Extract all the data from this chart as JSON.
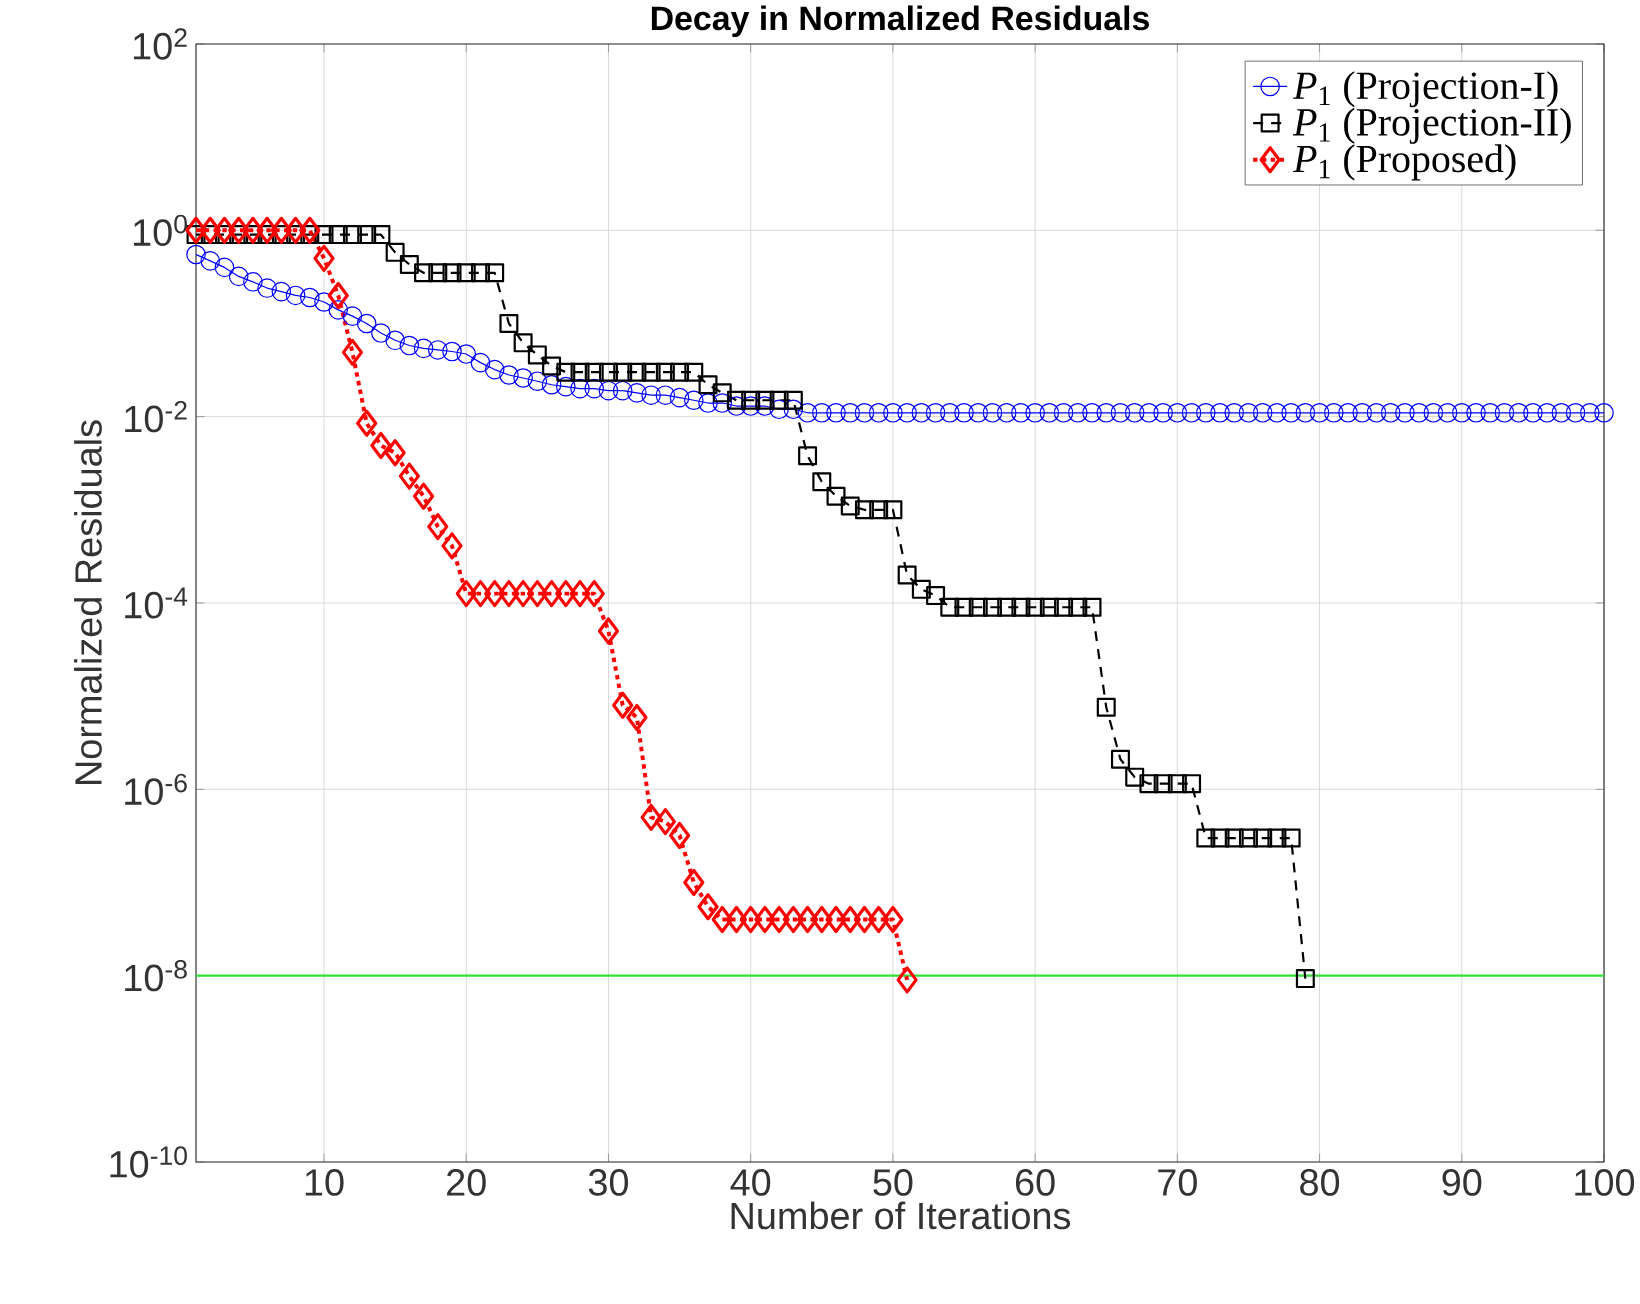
{
  "chart_data": {
    "type": "line",
    "title": "Decay in Normalized Residuals",
    "xlabel": "Number of Iterations",
    "ylabel": "Normalized Residuals",
    "log": "y",
    "grid": true,
    "legend": "top right",
    "xlim": [
      1,
      100
    ],
    "xticks": [
      10,
      20,
      30,
      40,
      50,
      60,
      70,
      80,
      90,
      100
    ],
    "ylim": [
      1e-10,
      100
    ],
    "yticks": [
      {
        "value": 1e-10,
        "label": "10$^{-10}$"
      },
      {
        "value": 1e-08,
        "label": "10$^{-8}$"
      },
      {
        "value": 1e-06,
        "label": "10$^{-6}$"
      },
      {
        "value": 0.0001,
        "label": "10$^{-4}$"
      },
      {
        "value": 0.01,
        "label": "10$^{-2}$"
      },
      {
        "value": 1,
        "label": "10$^{0}$"
      },
      {
        "value": 100,
        "label": "10$^{2}$"
      }
    ],
    "x": [
      1,
      2,
      3,
      4,
      5,
      6,
      7,
      8,
      9,
      10,
      11,
      12,
      13,
      14,
      15,
      16,
      17,
      18,
      19,
      20,
      21,
      22,
      23,
      24,
      25,
      26,
      27,
      28,
      29,
      30,
      31,
      32,
      33,
      34,
      35,
      36,
      37,
      38,
      39,
      40,
      41,
      42,
      43,
      44,
      45,
      46,
      47,
      48,
      49,
      50,
      51,
      52,
      53,
      54,
      55,
      56,
      57,
      58,
      59,
      60,
      61,
      62,
      63,
      64,
      65,
      66,
      67,
      68,
      69,
      70,
      71,
      72,
      73,
      74,
      75,
      76,
      77,
      78,
      79,
      80,
      81,
      82,
      83,
      84,
      85,
      86,
      87,
      88,
      89,
      90,
      91,
      92,
      93,
      94,
      95,
      96,
      97,
      98,
      99,
      100
    ],
    "series": [
      {
        "name": "*P*$_{1}$ (Projection-I)",
        "color": "#0000ff",
        "marker": "circle",
        "line_style": "solid",
        "values": [
          0.55,
          0.47,
          0.4,
          0.32,
          0.28,
          0.24,
          0.22,
          0.2,
          0.19,
          0.17,
          0.14,
          0.12,
          0.1,
          0.079,
          0.066,
          0.058,
          0.054,
          0.052,
          0.05,
          0.047,
          0.038,
          0.032,
          0.028,
          0.026,
          0.024,
          0.022,
          0.021,
          0.02,
          0.02,
          0.019,
          0.019,
          0.018,
          0.017,
          0.017,
          0.016,
          0.015,
          0.014,
          0.014,
          0.013,
          0.013,
          0.013,
          0.012,
          0.012,
          0.011,
          0.011,
          0.011,
          0.011,
          0.011,
          0.011,
          0.011,
          0.011,
          0.011,
          0.011,
          0.011,
          0.011,
          0.011,
          0.011,
          0.011,
          0.011,
          0.011,
          0.011,
          0.011,
          0.011,
          0.011,
          0.011,
          0.011,
          0.011,
          0.011,
          0.011,
          0.011,
          0.011,
          0.011,
          0.011,
          0.011,
          0.011,
          0.011,
          0.011,
          0.011,
          0.011,
          0.011,
          0.011,
          0.011,
          0.011,
          0.011,
          0.011,
          0.011,
          0.011,
          0.011,
          0.011,
          0.011,
          0.011,
          0.011,
          0.011,
          0.011,
          0.011,
          0.011,
          0.011,
          0.011,
          0.011,
          0.011
        ]
      },
      {
        "name": "*P*$_{1}$ (Projection-II)",
        "color": "#000000",
        "marker": "square",
        "line_style": "dashed",
        "values": [
          0.9,
          0.9,
          0.9,
          0.9,
          0.9,
          0.9,
          0.9,
          0.9,
          0.9,
          0.9,
          0.9,
          0.9,
          0.9,
          0.9,
          0.58,
          0.43,
          0.35,
          0.35,
          0.35,
          0.35,
          0.35,
          0.35,
          0.1,
          0.062,
          0.046,
          0.035,
          0.03,
          0.03,
          0.03,
          0.03,
          0.03,
          0.03,
          0.03,
          0.03,
          0.03,
          0.03,
          0.022,
          0.018,
          0.015,
          0.015,
          0.015,
          0.015,
          0.015,
          0.0038,
          0.002,
          0.0014,
          0.0011,
          0.001,
          0.001,
          0.001,
          0.0002,
          0.00014,
          0.00012,
          9e-05,
          9e-05,
          9e-05,
          9e-05,
          9e-05,
          9e-05,
          9e-05,
          9e-05,
          9e-05,
          9e-05,
          9e-05,
          7.6e-06,
          2.1e-06,
          1.35e-06,
          1.15e-06,
          1.15e-06,
          1.15e-06,
          1.15e-06,
          3e-07,
          3e-07,
          3e-07,
          3e-07,
          3e-07,
          3e-07,
          3e-07,
          9.3e-09,
          null,
          null,
          null,
          null,
          null,
          null,
          null,
          null,
          null,
          null,
          null,
          null,
          null,
          null,
          null,
          null,
          null,
          null,
          null,
          null,
          null
        ]
      },
      {
        "name": "*P*$_{1}$ (Proposed)",
        "color": "#ff0000",
        "marker": "diamond",
        "line_style": "dotted",
        "values": [
          1.0,
          1.0,
          1.0,
          1.0,
          1.0,
          1.0,
          1.0,
          1.0,
          1.0,
          0.5,
          0.2,
          0.049,
          0.0085,
          0.0049,
          0.0041,
          0.0023,
          0.0014,
          0.00066,
          0.00041,
          0.000126,
          0.000126,
          0.000126,
          0.000126,
          0.000126,
          0.000126,
          0.000126,
          0.000126,
          0.000126,
          0.000126,
          5e-05,
          8e-06,
          5.9e-06,
          5e-07,
          4.5e-07,
          3.2e-07,
          1e-07,
          5.5e-08,
          4e-08,
          4e-08,
          4e-08,
          4e-08,
          4e-08,
          4e-08,
          4e-08,
          4e-08,
          4e-08,
          4e-08,
          4e-08,
          4e-08,
          4e-08,
          9e-09,
          null,
          null,
          null,
          null,
          null,
          null,
          null,
          null,
          null,
          null,
          null,
          null,
          null,
          null,
          null,
          null,
          null,
          null,
          null,
          null,
          null,
          null,
          null,
          null,
          null,
          null,
          null,
          null,
          null,
          null,
          null,
          null,
          null,
          null,
          null,
          null,
          null,
          null,
          null,
          null,
          null,
          null,
          null,
          null,
          null,
          null,
          null,
          null,
          null
        ]
      }
    ],
    "ref_lines": [
      {
        "axis": "y",
        "value": 1e-08,
        "color": "#33dd33"
      }
    ]
  }
}
